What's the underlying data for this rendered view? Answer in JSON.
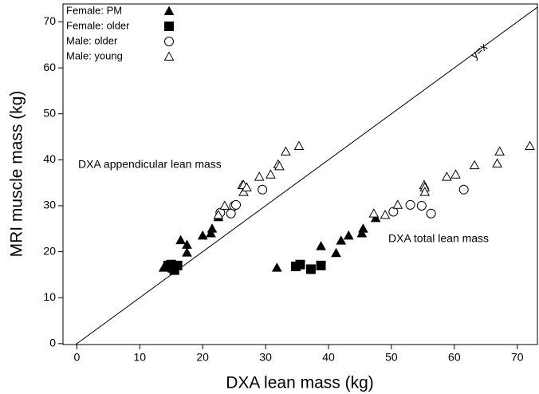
{
  "chart_data": {
    "type": "scatter",
    "xlabel": "DXA lean mass (kg)",
    "ylabel": "MRI muscle mass (kg)",
    "xlim": [
      -2.2,
      73.2
    ],
    "ylim": [
      -0.2,
      73.9
    ],
    "xticks": [
      0,
      10,
      20,
      30,
      40,
      50,
      60,
      70
    ],
    "yticks": [
      0,
      10,
      20,
      30,
      40,
      50,
      60,
      70
    ],
    "legend": "upper left",
    "annotations": [
      "DXA appendicular lean mass",
      "DXA total lean mass",
      "y=x"
    ],
    "series": [
      {
        "name": "Female: PM",
        "color": "#000",
        "marker": "triangle-filled",
        "x": [
          13.8,
          14.2,
          14.8,
          16.5,
          17.5,
          17.5,
          20,
          21.3,
          21.5,
          22.5,
          31.8,
          38.8,
          41.2,
          42,
          43.2,
          45.3,
          45.5,
          47.5
        ],
        "y": [
          16.5,
          17,
          16.8,
          22.5,
          21.5,
          19.8,
          23.5,
          24,
          25,
          27.5,
          16.5,
          21.2,
          19.7,
          22.4,
          23.5,
          24,
          25,
          27.3
        ]
      },
      {
        "name": "Female: older",
        "color": "#000",
        "marker": "square-filled",
        "x": [
          14.5,
          15,
          15.5,
          16,
          15.2,
          34.8,
          35.5,
          37.2,
          38.8
        ],
        "y": [
          17,
          17.2,
          16,
          17,
          16.5,
          16.8,
          17.2,
          16.2,
          17
        ]
      },
      {
        "name": "Male: older",
        "color": "#000",
        "marker": "circle-open",
        "x": [
          22.8,
          24.5,
          25,
          25.3,
          29.5,
          50.3,
          53,
          54.8,
          56.3,
          61.5
        ],
        "y": [
          28.5,
          28.3,
          30,
          30.2,
          33.5,
          28.7,
          30.2,
          30,
          28.3,
          33.5
        ]
      },
      {
        "name": "Male: young",
        "color": "#000",
        "marker": "triangle-open",
        "x": [
          22.5,
          23.5,
          26.3,
          26.5,
          26.5,
          27,
          29,
          30.8,
          32,
          32.2,
          33.2,
          35.3,
          47.2,
          49,
          51,
          55.2,
          55.3,
          55.3,
          58.8,
          60.2,
          63.2,
          66.8,
          67.2,
          72
        ],
        "y": [
          28,
          30,
          34.5,
          33,
          34.5,
          34,
          36.3,
          36.8,
          39,
          38.6,
          41.8,
          43,
          28.3,
          28,
          30.2,
          34.5,
          34,
          33,
          36.3,
          36.8,
          38.8,
          39.2,
          41.8,
          43
        ]
      }
    ]
  }
}
